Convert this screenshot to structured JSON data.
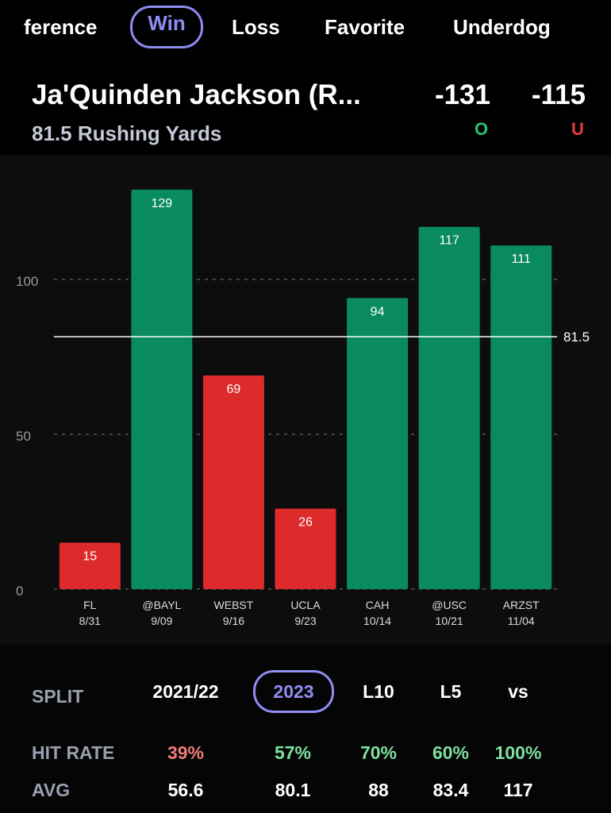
{
  "tabs": [
    {
      "label": "ference",
      "active": false
    },
    {
      "label": "Win",
      "active": true
    },
    {
      "label": "Loss",
      "active": false
    },
    {
      "label": "Favorite",
      "active": false
    },
    {
      "label": "Underdog",
      "active": false
    }
  ],
  "header": {
    "player": "Ja'Quinden Jackson (R...",
    "prop": "81.5 Rushing Yards",
    "over_odds": "-131",
    "under_odds": "-115",
    "over_label": "O",
    "under_label": "U"
  },
  "colors": {
    "over": "#0a8a5f",
    "under": "#dd2a2a",
    "accent": "#8f8cf2",
    "over_text": "#2fbf6e",
    "under_text": "#e53b3b"
  },
  "chart_data": {
    "type": "bar",
    "categories": [
      "FL",
      "@BAYL",
      "WEBST",
      "UCLA",
      "CAH",
      "@USC",
      "ARZST"
    ],
    "dates": [
      "8/31",
      "9/09",
      "9/16",
      "9/23",
      "10/14",
      "10/21",
      "11/04"
    ],
    "values": [
      15,
      129,
      69,
      26,
      94,
      117,
      111
    ],
    "line": 81.5,
    "line_label": "81.5",
    "yticks": [
      0,
      50,
      100
    ],
    "ylim": [
      0,
      140
    ],
    "grid": "dashed"
  },
  "splits": {
    "row_labels": {
      "split": "SPLIT",
      "hit_rate": "HIT RATE",
      "avg": "AVG"
    },
    "columns": [
      {
        "label": "2021/22",
        "hit_rate": "39%",
        "avg": "56.6",
        "active": false,
        "positive": false
      },
      {
        "label": "2023",
        "hit_rate": "57%",
        "avg": "80.1",
        "active": true,
        "positive": true
      },
      {
        "label": "L10",
        "hit_rate": "70%",
        "avg": "88",
        "active": false,
        "positive": true
      },
      {
        "label": "L5",
        "hit_rate": "60%",
        "avg": "83.4",
        "active": false,
        "positive": true
      },
      {
        "label": "vs",
        "hit_rate": "100%",
        "avg": "117",
        "active": false,
        "positive": true
      }
    ]
  }
}
